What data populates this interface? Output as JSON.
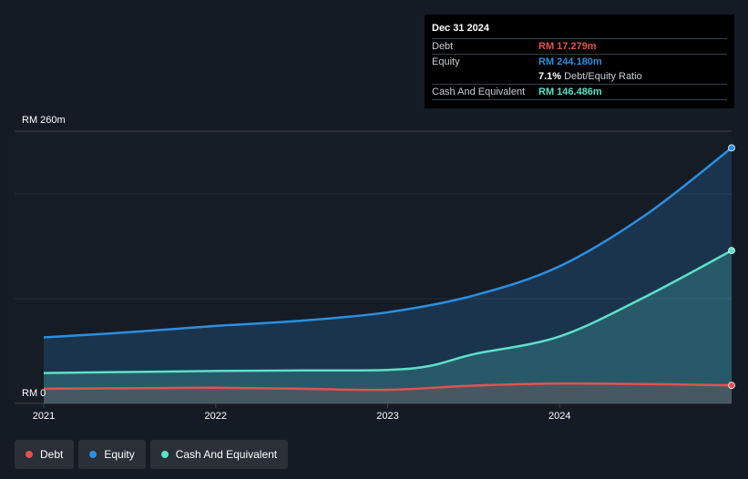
{
  "tooltip": {
    "date": "Dec 31 2024",
    "rows": [
      {
        "label": "Debt",
        "value": "RM 17.279m",
        "color": "#e0534f"
      },
      {
        "label": "Equity",
        "value": "RM 244.180m",
        "color": "#2b8fe0"
      },
      {
        "label": "",
        "value": "7.1%",
        "sub": "Debt/Equity Ratio",
        "color": "#ffffff"
      },
      {
        "label": "Cash And Equivalent",
        "value": "RM 146.486m",
        "color": "#5de0c8"
      }
    ]
  },
  "legend": [
    {
      "label": "Debt",
      "color": "#e0534f"
    },
    {
      "label": "Equity",
      "color": "#2b8fe0"
    },
    {
      "label": "Cash And Equivalent",
      "color": "#5de0c8"
    }
  ],
  "chart_data": {
    "type": "area",
    "x_ticks": [
      "2021",
      "2022",
      "2023",
      "2024"
    ],
    "y_labels": [
      "RM 260m",
      "RM 0"
    ],
    "ylim": [
      0,
      260
    ],
    "xlim": [
      2021.0,
      2025.0
    ],
    "grid": true,
    "legend_position": "bottom-left",
    "series": [
      {
        "name": "Equity",
        "color": "#2b8fe0",
        "x": [
          2021.0,
          2021.5,
          2022.0,
          2022.5,
          2023.0,
          2023.5,
          2024.0,
          2024.5,
          2025.0
        ],
        "values": [
          63,
          68,
          74,
          79,
          87,
          103,
          131,
          180,
          244
        ]
      },
      {
        "name": "Cash And Equivalent",
        "color": "#5de0c8",
        "x": [
          2021.0,
          2021.5,
          2022.0,
          2022.5,
          2023.0,
          2023.25,
          2023.5,
          2024.0,
          2024.5,
          2025.0
        ],
        "values": [
          29,
          30,
          31,
          31.5,
          32,
          36,
          47,
          64,
          102,
          146
        ]
      },
      {
        "name": "Debt",
        "color": "#e0534f",
        "x": [
          2021.0,
          2021.5,
          2022.0,
          2022.5,
          2023.0,
          2023.5,
          2024.0,
          2024.5,
          2025.0
        ],
        "values": [
          14,
          14.5,
          15,
          14,
          13,
          17,
          19,
          18.5,
          17.3
        ]
      }
    ]
  }
}
